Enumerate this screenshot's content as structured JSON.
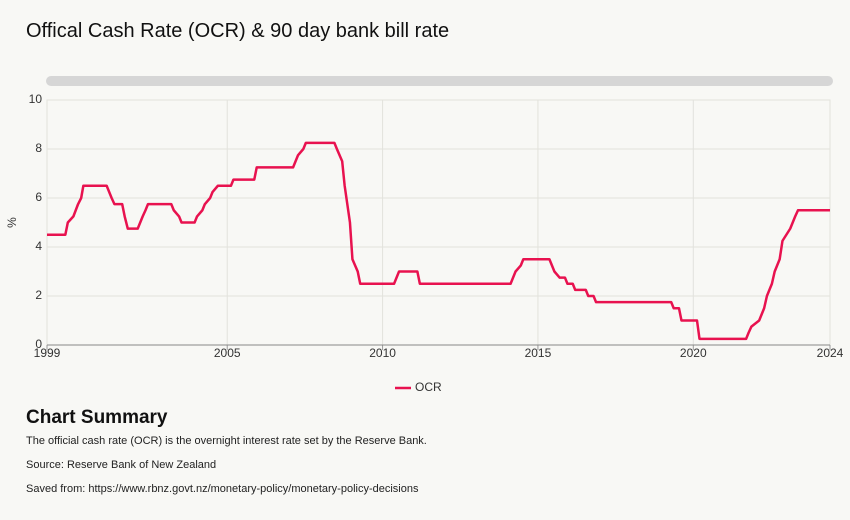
{
  "chart_data": {
    "type": "line",
    "title": "Offical Cash Rate (OCR) & 90 day bank bill rate",
    "y_label": "%",
    "xlim": [
      1999.2,
      2024.4
    ],
    "xticks": [
      {
        "value": 1999.2,
        "label": "1999"
      },
      2005,
      2010,
      2015,
      2020,
      {
        "value": 2024.4,
        "label": "2024"
      }
    ],
    "ylim": [
      0,
      10
    ],
    "yticks": [
      0,
      2,
      4,
      6,
      8,
      10
    ],
    "grid": true,
    "x": [
      1999.2,
      1999.79,
      1999.87,
      2000.05,
      2000.2,
      2000.3,
      2000.37,
      2001.12,
      2001.2,
      2001.28,
      2001.37,
      2001.62,
      2001.7,
      2001.8,
      2002.12,
      2002.2,
      2002.28,
      2002.37,
      2002.45,
      2003.2,
      2003.28,
      2003.45,
      2003.53,
      2003.95,
      2004.03,
      2004.2,
      2004.28,
      2004.45,
      2004.53,
      2004.7,
      2005.12,
      2005.2,
      2005.87,
      2005.95,
      2007.12,
      2007.2,
      2007.28,
      2007.45,
      2007.53,
      2008.45,
      2008.53,
      2008.7,
      2008.78,
      2008.95,
      2009.03,
      2009.2,
      2009.28,
      2010.37,
      2010.45,
      2010.53,
      2011.12,
      2011.2,
      2014.12,
      2014.2,
      2014.28,
      2014.45,
      2014.53,
      2015.37,
      2015.45,
      2015.53,
      2015.7,
      2015.87,
      2015.95,
      2016.12,
      2016.2,
      2016.54,
      2016.62,
      2016.79,
      2016.87,
      2019.29,
      2019.37,
      2019.54,
      2019.62,
      2020.12,
      2020.2,
      2021.7,
      2021.78,
      2021.87,
      2022.12,
      2022.28,
      2022.37,
      2022.53,
      2022.62,
      2022.78,
      2022.87,
      2023.12,
      2023.28,
      2023.37,
      2024.4
    ],
    "series": [
      {
        "name": "OCR",
        "color": "#e8124f",
        "values": [
          4.5,
          4.5,
          5.0,
          5.25,
          5.75,
          6.0,
          6.5,
          6.5,
          6.25,
          6.0,
          5.75,
          5.75,
          5.25,
          4.75,
          4.75,
          5.0,
          5.25,
          5.5,
          5.75,
          5.75,
          5.5,
          5.25,
          5.0,
          5.0,
          5.25,
          5.5,
          5.75,
          6.0,
          6.25,
          6.5,
          6.5,
          6.75,
          6.75,
          7.25,
          7.25,
          7.5,
          7.75,
          8.0,
          8.25,
          8.25,
          8.0,
          7.5,
          6.5,
          5.0,
          3.5,
          3.0,
          2.5,
          2.5,
          2.75,
          3.0,
          3.0,
          2.5,
          2.5,
          2.75,
          3.0,
          3.25,
          3.5,
          3.5,
          3.25,
          3.0,
          2.75,
          2.75,
          2.5,
          2.5,
          2.25,
          2.25,
          2.0,
          2.0,
          1.75,
          1.75,
          1.5,
          1.5,
          1.0,
          1.0,
          0.25,
          0.25,
          0.5,
          0.75,
          1.0,
          1.5,
          2.0,
          2.5,
          3.0,
          3.5,
          4.25,
          4.75,
          5.25,
          5.5,
          5.5
        ]
      }
    ]
  },
  "summary": {
    "heading": "Chart Summary",
    "lines": [
      "The official cash rate (OCR) is the overnight interest rate set by the Reserve Bank.",
      "Source: Reserve Bank of New Zealand",
      "Saved from: https://www.rbnz.govt.nz/monetary-policy/monetary-policy-decisions"
    ]
  }
}
